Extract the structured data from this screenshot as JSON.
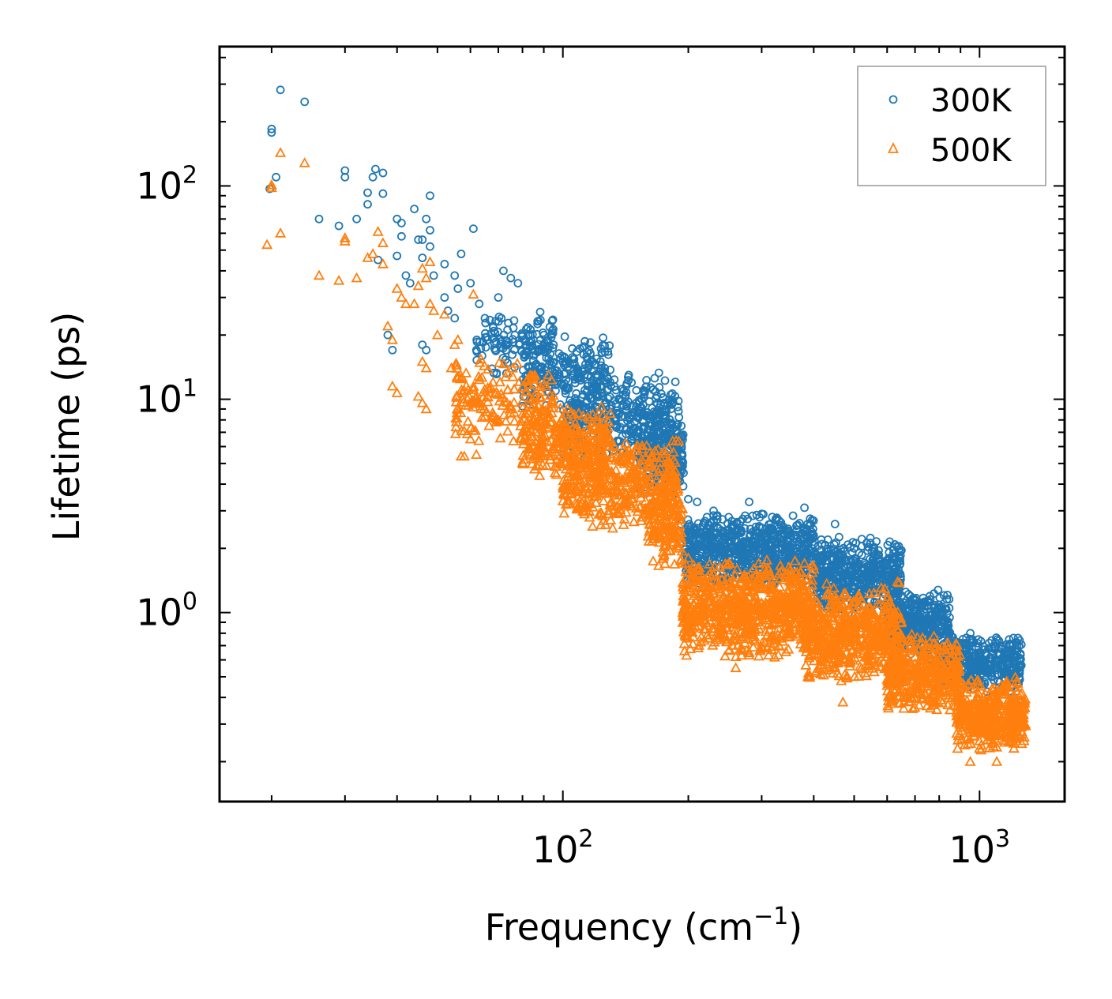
{
  "chart_data": {
    "type": "scatter",
    "xscale": "log",
    "yscale": "log",
    "xlabel": "Frequency (cm",
    "xlabel_sup": "−1",
    "xlabel_close": ")",
    "ylabel": "Lifetime (ps)",
    "xlim": [
      15,
      1600
    ],
    "ylim": [
      0.13,
      450
    ],
    "x_ticks": [
      {
        "value": 100,
        "base": "10",
        "exp": "2"
      },
      {
        "value": 1000,
        "base": "10",
        "exp": "3"
      }
    ],
    "y_ticks": [
      {
        "value": 1,
        "base": "10",
        "exp": "0"
      },
      {
        "value": 10,
        "base": "10",
        "exp": "1"
      },
      {
        "value": 100,
        "base": "10",
        "exp": "2"
      }
    ],
    "legend_position": "top-right",
    "series": [
      {
        "name": "300K",
        "marker": "circle",
        "color": "#1f77b4",
        "points": [
          [
            20,
            185
          ],
          [
            20,
            178
          ],
          [
            21,
            282
          ],
          [
            24,
            248
          ],
          [
            20.5,
            110
          ],
          [
            19.8,
            97
          ],
          [
            26,
            70
          ],
          [
            29,
            65
          ],
          [
            30,
            118
          ],
          [
            30,
            110
          ],
          [
            32,
            70
          ],
          [
            34,
            93
          ],
          [
            34,
            82
          ],
          [
            35.5,
            120
          ],
          [
            35,
            110
          ],
          [
            37,
            115
          ],
          [
            37,
            92
          ],
          [
            36,
            45
          ],
          [
            38,
            20
          ],
          [
            39,
            17
          ],
          [
            40,
            70
          ],
          [
            41,
            67
          ],
          [
            41,
            58
          ],
          [
            40,
            47
          ],
          [
            42,
            38
          ],
          [
            43,
            35
          ],
          [
            44,
            78
          ],
          [
            45,
            56
          ],
          [
            46,
            56
          ],
          [
            46,
            46
          ],
          [
            47,
            70
          ],
          [
            48,
            90
          ],
          [
            48,
            62
          ],
          [
            48,
            52
          ],
          [
            47,
            17
          ],
          [
            46,
            18
          ],
          [
            49,
            38
          ],
          [
            52,
            30
          ],
          [
            52,
            43
          ],
          [
            55,
            38
          ],
          [
            56,
            33
          ],
          [
            57,
            48
          ],
          [
            60,
            35
          ],
          [
            61,
            63
          ],
          [
            53,
            26
          ],
          [
            55,
            24
          ],
          [
            63,
            28
          ],
          [
            65,
            24
          ],
          [
            68,
            22
          ],
          [
            70,
            30
          ],
          [
            72,
            40
          ],
          [
            75,
            37
          ],
          [
            78,
            35
          ],
          [
            62,
            17
          ],
          [
            64,
            16
          ],
          [
            66,
            19
          ],
          [
            80,
            20
          ],
          [
            90,
            20
          ],
          [
            95,
            18
          ],
          [
            100,
            15
          ],
          [
            108,
            14
          ],
          [
            115,
            14
          ],
          [
            120,
            13
          ],
          [
            130,
            12
          ],
          [
            140,
            11
          ],
          [
            150,
            9.6
          ],
          [
            160,
            7.2
          ],
          [
            170,
            6.3
          ],
          [
            180,
            5.1
          ],
          [
            185,
            4.8
          ],
          [
            190,
            4.3
          ],
          [
            192,
            2.6
          ],
          [
            196,
            2.2
          ],
          [
            200,
            3.4
          ],
          [
            210,
            3.3
          ],
          [
            230,
            3.0
          ],
          [
            250,
            2.8
          ],
          [
            280,
            3.3
          ],
          [
            300,
            2.9
          ],
          [
            330,
            2.7
          ],
          [
            380,
            3.1
          ],
          [
            400,
            2.3
          ],
          [
            450,
            2.6
          ],
          [
            500,
            2.0
          ],
          [
            550,
            1.55
          ],
          [
            570,
            1.85
          ],
          [
            600,
            1.5
          ],
          [
            650,
            1.2
          ],
          [
            700,
            1.1
          ],
          [
            800,
            0.78
          ],
          [
            900,
            0.72
          ],
          [
            950,
            0.8
          ],
          [
            1000,
            0.62
          ],
          [
            1050,
            0.68
          ],
          [
            1100,
            0.55
          ],
          [
            1150,
            0.48
          ],
          [
            1200,
            0.4
          ],
          [
            1260,
            0.38
          ]
        ],
        "clusters": [
          {
            "x": [
              62,
              95
            ],
            "y": [
              12,
              28
            ],
            "n": 120
          },
          {
            "x": [
              80,
              130
            ],
            "y": [
              9,
              20
            ],
            "n": 200
          },
          {
            "x": [
              100,
              190
            ],
            "y": [
              5,
              14
            ],
            "n": 380
          },
          {
            "x": [
              150,
              195
            ],
            "y": [
              3.5,
              8
            ],
            "n": 220
          },
          {
            "x": [
              196,
              400
            ],
            "y": [
              1.3,
              3.0
            ],
            "n": 700
          },
          {
            "x": [
              400,
              650
            ],
            "y": [
              0.95,
              2.3
            ],
            "n": 520
          },
          {
            "x": [
              600,
              850
            ],
            "y": [
              0.6,
              1.3
            ],
            "n": 380
          },
          {
            "x": [
              800,
              1260
            ],
            "y": [
              0.42,
              0.8
            ],
            "n": 380
          }
        ]
      },
      {
        "name": "500K",
        "marker": "triangle",
        "color": "#ff7f0e",
        "points": [
          [
            19.5,
            53
          ],
          [
            20,
            101
          ],
          [
            20,
            98
          ],
          [
            21,
            60
          ],
          [
            21,
            143
          ],
          [
            24,
            128
          ],
          [
            26,
            38
          ],
          [
            29,
            36
          ],
          [
            30,
            57
          ],
          [
            30,
            55
          ],
          [
            32,
            37
          ],
          [
            34,
            46
          ],
          [
            35,
            48
          ],
          [
            36,
            61
          ],
          [
            37,
            54
          ],
          [
            37,
            43
          ],
          [
            38,
            22
          ],
          [
            39,
            19
          ],
          [
            39,
            11.5
          ],
          [
            40,
            10.7
          ],
          [
            40,
            33
          ],
          [
            41,
            30
          ],
          [
            42,
            28
          ],
          [
            44,
            28
          ],
          [
            45,
            34
          ],
          [
            46,
            41
          ],
          [
            47,
            37
          ],
          [
            48,
            44
          ],
          [
            48,
            28
          ],
          [
            46,
            15
          ],
          [
            47,
            14
          ],
          [
            45,
            10.3
          ],
          [
            46,
            9.6
          ],
          [
            47,
            9.0
          ],
          [
            49,
            26
          ],
          [
            50,
            20
          ],
          [
            52,
            25
          ],
          [
            54,
            14
          ],
          [
            55,
            18
          ],
          [
            56,
            19
          ],
          [
            57,
            5.4
          ],
          [
            58,
            5.4
          ],
          [
            60,
            6.5
          ],
          [
            61,
            31
          ],
          [
            62,
            5.5
          ],
          [
            64,
            8.2
          ],
          [
            66,
            9.7
          ],
          [
            68,
            12
          ],
          [
            70,
            8.0
          ],
          [
            75,
            9.0
          ],
          [
            80,
            8.5
          ],
          [
            90,
            7.6
          ],
          [
            100,
            6.6
          ],
          [
            108,
            6.5
          ],
          [
            115,
            5.5
          ],
          [
            125,
            7.2
          ],
          [
            140,
            5.8
          ],
          [
            150,
            5.1
          ],
          [
            160,
            4.5
          ],
          [
            170,
            3.0
          ],
          [
            180,
            3.2
          ],
          [
            185,
            2.3
          ],
          [
            190,
            2.0
          ],
          [
            194,
            1.0
          ],
          [
            198,
            1.3
          ],
          [
            200,
            1.8
          ],
          [
            210,
            1.6
          ],
          [
            230,
            1.5
          ],
          [
            250,
            1.7
          ],
          [
            260,
            0.55
          ],
          [
            280,
            0.65
          ],
          [
            300,
            1.3
          ],
          [
            330,
            0.7
          ],
          [
            350,
            1.4
          ],
          [
            380,
            1.7
          ],
          [
            400,
            1.1
          ],
          [
            420,
            0.95
          ],
          [
            450,
            1.2
          ],
          [
            470,
            0.38
          ],
          [
            500,
            0.8
          ],
          [
            550,
            1.0
          ],
          [
            580,
            0.8
          ],
          [
            600,
            0.55
          ],
          [
            650,
            0.9
          ],
          [
            700,
            0.62
          ],
          [
            750,
            0.45
          ],
          [
            800,
            0.6
          ],
          [
            850,
            0.5
          ],
          [
            900,
            0.42
          ],
          [
            950,
            0.2
          ],
          [
            1000,
            0.25
          ],
          [
            1050,
            0.35
          ],
          [
            1100,
            0.2
          ],
          [
            1150,
            0.3
          ],
          [
            1200,
            0.28
          ],
          [
            1280,
            0.26
          ]
        ],
        "clusters": [
          {
            "x": [
              55,
              95
            ],
            "y": [
              6,
              16
            ],
            "n": 180
          },
          {
            "x": [
              80,
              130
            ],
            "y": [
              4,
              10
            ],
            "n": 260
          },
          {
            "x": [
              100,
              190
            ],
            "y": [
              2.4,
              7
            ],
            "n": 460
          },
          {
            "x": [
              160,
              194
            ],
            "y": [
              1.6,
              4
            ],
            "n": 140
          },
          {
            "x": [
              194,
              400
            ],
            "y": [
              0.6,
              1.8
            ],
            "n": 800
          },
          {
            "x": [
              380,
              650
            ],
            "y": [
              0.45,
              1.4
            ],
            "n": 560
          },
          {
            "x": [
              600,
              900
            ],
            "y": [
              0.33,
              0.8
            ],
            "n": 400
          },
          {
            "x": [
              880,
              1290
            ],
            "y": [
              0.22,
              0.5
            ],
            "n": 440
          }
        ]
      }
    ]
  }
}
